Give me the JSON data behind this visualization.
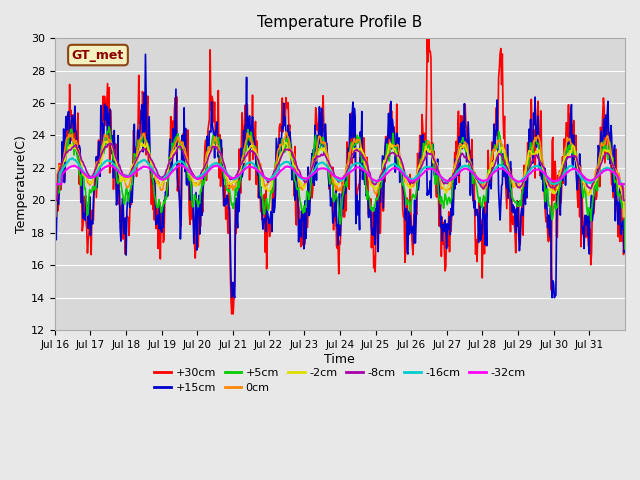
{
  "title": "Temperature Profile B",
  "xlabel": "Time",
  "ylabel": "Temperature(C)",
  "ylim": [
    12,
    30
  ],
  "yticks": [
    12,
    14,
    16,
    18,
    20,
    22,
    24,
    26,
    28,
    30
  ],
  "xtick_labels": [
    "Jul 16",
    "Jul 17",
    "Jul 18",
    "Jul 19",
    "Jul 20",
    "Jul 21",
    "Jul 22",
    "Jul 23",
    "Jul 24",
    "Jul 25",
    "Jul 26",
    "Jul 27",
    "Jul 28",
    "Jul 29",
    "Jul 30",
    "Jul 31"
  ],
  "background_color": "#e8e8e8",
  "plot_bg_color": "#d8d8d8",
  "legend_label": "GT_met",
  "series": [
    {
      "label": "+30cm",
      "color": "#ff0000",
      "lw": 1.2
    },
    {
      "label": "+15cm",
      "color": "#0000cc",
      "lw": 1.2
    },
    {
      "label": "+5cm",
      "color": "#00cc00",
      "lw": 1.2
    },
    {
      "label": "0cm",
      "color": "#ff8800",
      "lw": 1.2
    },
    {
      "label": "-2cm",
      "color": "#dddd00",
      "lw": 1.2
    },
    {
      "label": "-8cm",
      "color": "#aa00aa",
      "lw": 1.2
    },
    {
      "label": "-16cm",
      "color": "#00cccc",
      "lw": 1.5
    },
    {
      "label": "-32cm",
      "color": "#ff00ff",
      "lw": 1.5
    }
  ]
}
